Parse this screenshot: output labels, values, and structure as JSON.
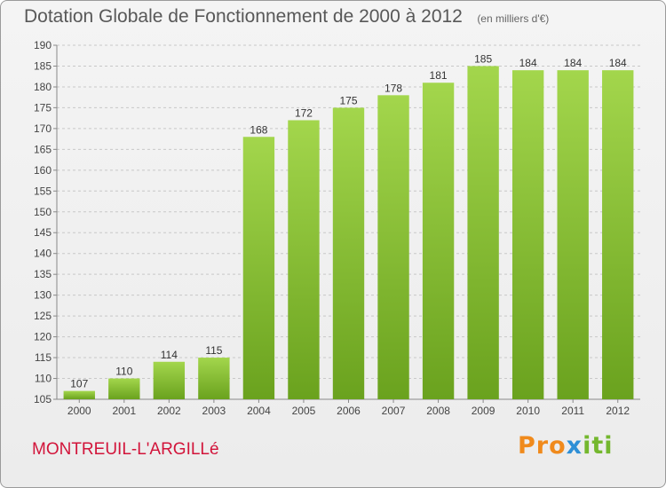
{
  "header": {
    "title": "Dotation Globale de Fonctionnement de 2000 à 2012",
    "unit": "(en milliers d'€)"
  },
  "footer": {
    "commune": "MONTREUIL-L'ARGILLé",
    "logo_parts": [
      "Pro",
      "x",
      "iti"
    ]
  },
  "colors": {
    "bar_top": "#a3d64c",
    "bar_bottom": "#6aa21e",
    "grid": "#c8c8c8",
    "commune": "#d2143a"
  },
  "chart_data": {
    "type": "bar",
    "title": "Dotation Globale de Fonctionnement de 2000 à 2012",
    "subtitle": "(en milliers d'€)",
    "categories": [
      "2000",
      "2001",
      "2002",
      "2003",
      "2004",
      "2005",
      "2006",
      "2007",
      "2008",
      "2009",
      "2010",
      "2011",
      "2012"
    ],
    "values": [
      107,
      110,
      114,
      115,
      168,
      172,
      175,
      178,
      181,
      185,
      184,
      184,
      184
    ],
    "ylim": [
      105,
      190
    ],
    "yticks": [
      105,
      110,
      115,
      120,
      125,
      130,
      135,
      140,
      145,
      150,
      155,
      160,
      165,
      170,
      175,
      180,
      185,
      190
    ],
    "grid": true,
    "data_labels": true
  }
}
